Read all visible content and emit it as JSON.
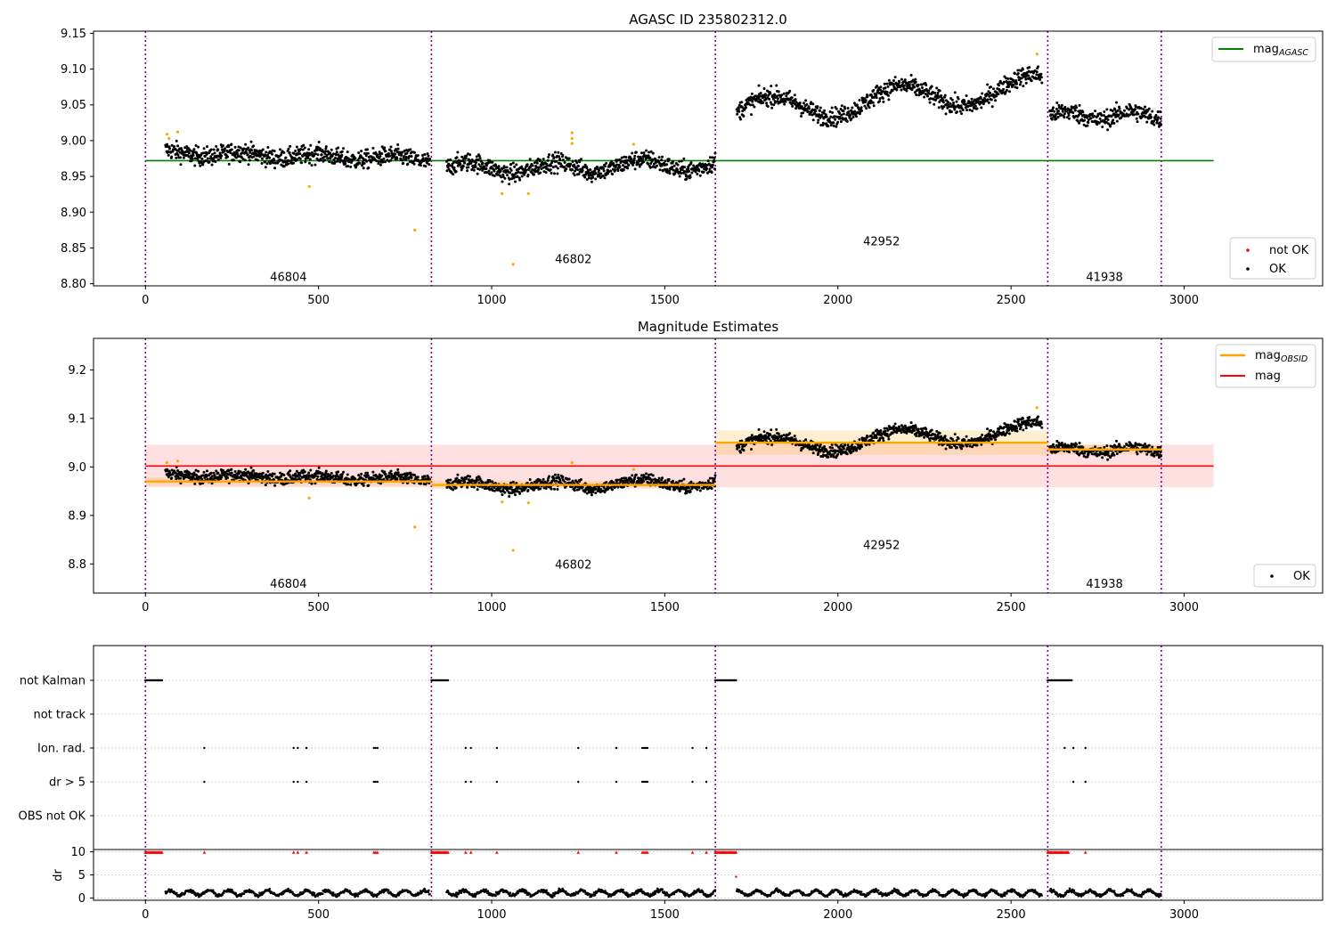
{
  "chart_data": [
    {
      "type": "scatter",
      "title": "AGASC ID 235802312.0",
      "xlim": [
        -150,
        3400
      ],
      "ylim": [
        8.797,
        9.153
      ],
      "xticks": [
        0,
        500,
        1000,
        1500,
        2000,
        2500,
        3000
      ],
      "yticks": [
        8.8,
        8.85,
        8.9,
        8.95,
        9.0,
        9.05,
        9.1,
        9.15
      ],
      "yticklabels": [
        "8.80",
        "8.85",
        "8.90",
        "8.95",
        "9.00",
        "9.05",
        "9.10",
        "9.15"
      ],
      "obsid_boundaries": [
        0,
        826,
        1646,
        2606,
        2934
      ],
      "obsid_labels": [
        {
          "text": "46804",
          "x": 413,
          "y": 8.81
        },
        {
          "text": "46802",
          "x": 1236,
          "y": 8.835
        },
        {
          "text": "42952",
          "x": 2126,
          "y": 8.86
        },
        {
          "text": "41938",
          "x": 2770,
          "y": 8.81
        }
      ],
      "mag_agasc": {
        "value": 8.972,
        "xrange": [
          0,
          3085
        ],
        "color": "#008000"
      },
      "legend_upper": [
        {
          "label": "mag",
          "sub": "AGASC",
          "color": "#008000"
        }
      ],
      "legend_lower": [
        {
          "label": "not OK",
          "color": "#ff0000"
        },
        {
          "label": "OK",
          "color": "#000000"
        }
      ],
      "outliers": [
        [
          62,
          9.009
        ],
        [
          68,
          9.003
        ],
        [
          93,
          9.012
        ],
        [
          473,
          8.936
        ],
        [
          778,
          8.875
        ],
        [
          1030,
          8.926
        ],
        [
          1062,
          8.827
        ],
        [
          1106,
          8.926
        ],
        [
          1232,
          9.011
        ],
        [
          1232,
          9.003
        ],
        [
          1232,
          8.996
        ],
        [
          1410,
          8.995
        ],
        [
          2575,
          9.121
        ]
      ]
    },
    {
      "type": "scatter",
      "title": "Magnitude Estimates",
      "xlim": [
        -150,
        3400
      ],
      "ylim": [
        8.74,
        9.265
      ],
      "xticks": [
        0,
        500,
        1000,
        1500,
        2000,
        2500,
        3000
      ],
      "yticks": [
        8.8,
        8.9,
        9.0,
        9.1,
        9.2
      ],
      "yticklabels": [
        "8.8",
        "8.9",
        "9.0",
        "9.1",
        "9.2"
      ],
      "obsid_labels": [
        {
          "text": "46804",
          "x": 413,
          "y": 8.76
        },
        {
          "text": "46802",
          "x": 1236,
          "y": 8.8
        },
        {
          "text": "42952",
          "x": 2126,
          "y": 8.84
        },
        {
          "text": "41938",
          "x": 2770,
          "y": 8.76
        }
      ],
      "mag": {
        "value": 9.002,
        "band": [
          8.958,
          9.046
        ],
        "xrange": [
          0,
          3085
        ],
        "color": "#ff0000"
      },
      "mag_obsid": [
        {
          "x": [
            0,
            826
          ],
          "value": 8.97,
          "band": [
            8.962,
            8.978
          ]
        },
        {
          "x": [
            826,
            1646
          ],
          "value": 8.963,
          "band": [
            8.955,
            8.971
          ]
        },
        {
          "x": [
            1646,
            2606
          ],
          "value": 9.05,
          "band": [
            9.025,
            9.075
          ]
        },
        {
          "x": [
            2606,
            2934
          ],
          "value": 9.036,
          "band": [
            9.026,
            9.046
          ]
        }
      ],
      "legend_upper": [
        {
          "label": "mag",
          "sub": "OBSID",
          "color": "#ffa500"
        },
        {
          "label": "mag",
          "sub": "",
          "color": "#ff0000"
        }
      ],
      "legend_lower": [
        {
          "label": "OK",
          "color": "#000000"
        }
      ],
      "outliers": [
        [
          62,
          9.009
        ],
        [
          93,
          9.012
        ],
        [
          473,
          8.936
        ],
        [
          778,
          8.876
        ],
        [
          1030,
          8.928
        ],
        [
          1062,
          8.828
        ],
        [
          1106,
          8.926
        ],
        [
          1232,
          9.009
        ],
        [
          1410,
          8.995
        ],
        [
          2575,
          9.122
        ]
      ]
    },
    {
      "type": "scatter",
      "xlim": [
        -150,
        3400
      ],
      "yticks_flags": [
        "not Kalman",
        "not track",
        "Ion. rad.",
        "dr > 5",
        "OBS not OK"
      ],
      "xticks": [
        0,
        500,
        1000,
        1500,
        2000,
        2500,
        3000
      ],
      "flags": {
        "not Kalman": [
          [
            0,
            50
          ],
          [
            826,
            876
          ],
          [
            1646,
            1706
          ],
          [
            2606,
            2676
          ]
        ],
        "not track": [],
        "Ion. rad.": [
          170,
          428,
          440,
          465,
          660,
          665,
          670,
          925,
          940,
          1015,
          1250,
          1360,
          1435,
          1440,
          1445,
          1450,
          1580,
          1620,
          2655,
          2680,
          2715
        ],
        "dr > 5": [
          170,
          428,
          440,
          465,
          660,
          665,
          670,
          925,
          940,
          1015,
          1250,
          1360,
          1435,
          1440,
          1445,
          1450,
          1580,
          1620,
          2680,
          2715
        ],
        "OBS not OK": []
      },
      "dr": {
        "ylabel": "dr",
        "yticks": [
          0,
          5,
          10
        ],
        "ylim": [
          -0.5,
          10.5
        ],
        "clipped_red": [
          [
            0,
            50
          ],
          [
            826,
            876
          ],
          [
            1646,
            1706
          ],
          [
            2606,
            2666
          ]
        ],
        "clipped_red_points": [
          170,
          428,
          440,
          465,
          660,
          665,
          670,
          925,
          940,
          1015,
          1250,
          1360,
          1435,
          1440,
          1445,
          1450,
          1580,
          1620,
          2715
        ],
        "red_points": [
          [
            1706,
            4.6
          ]
        ]
      }
    }
  ]
}
